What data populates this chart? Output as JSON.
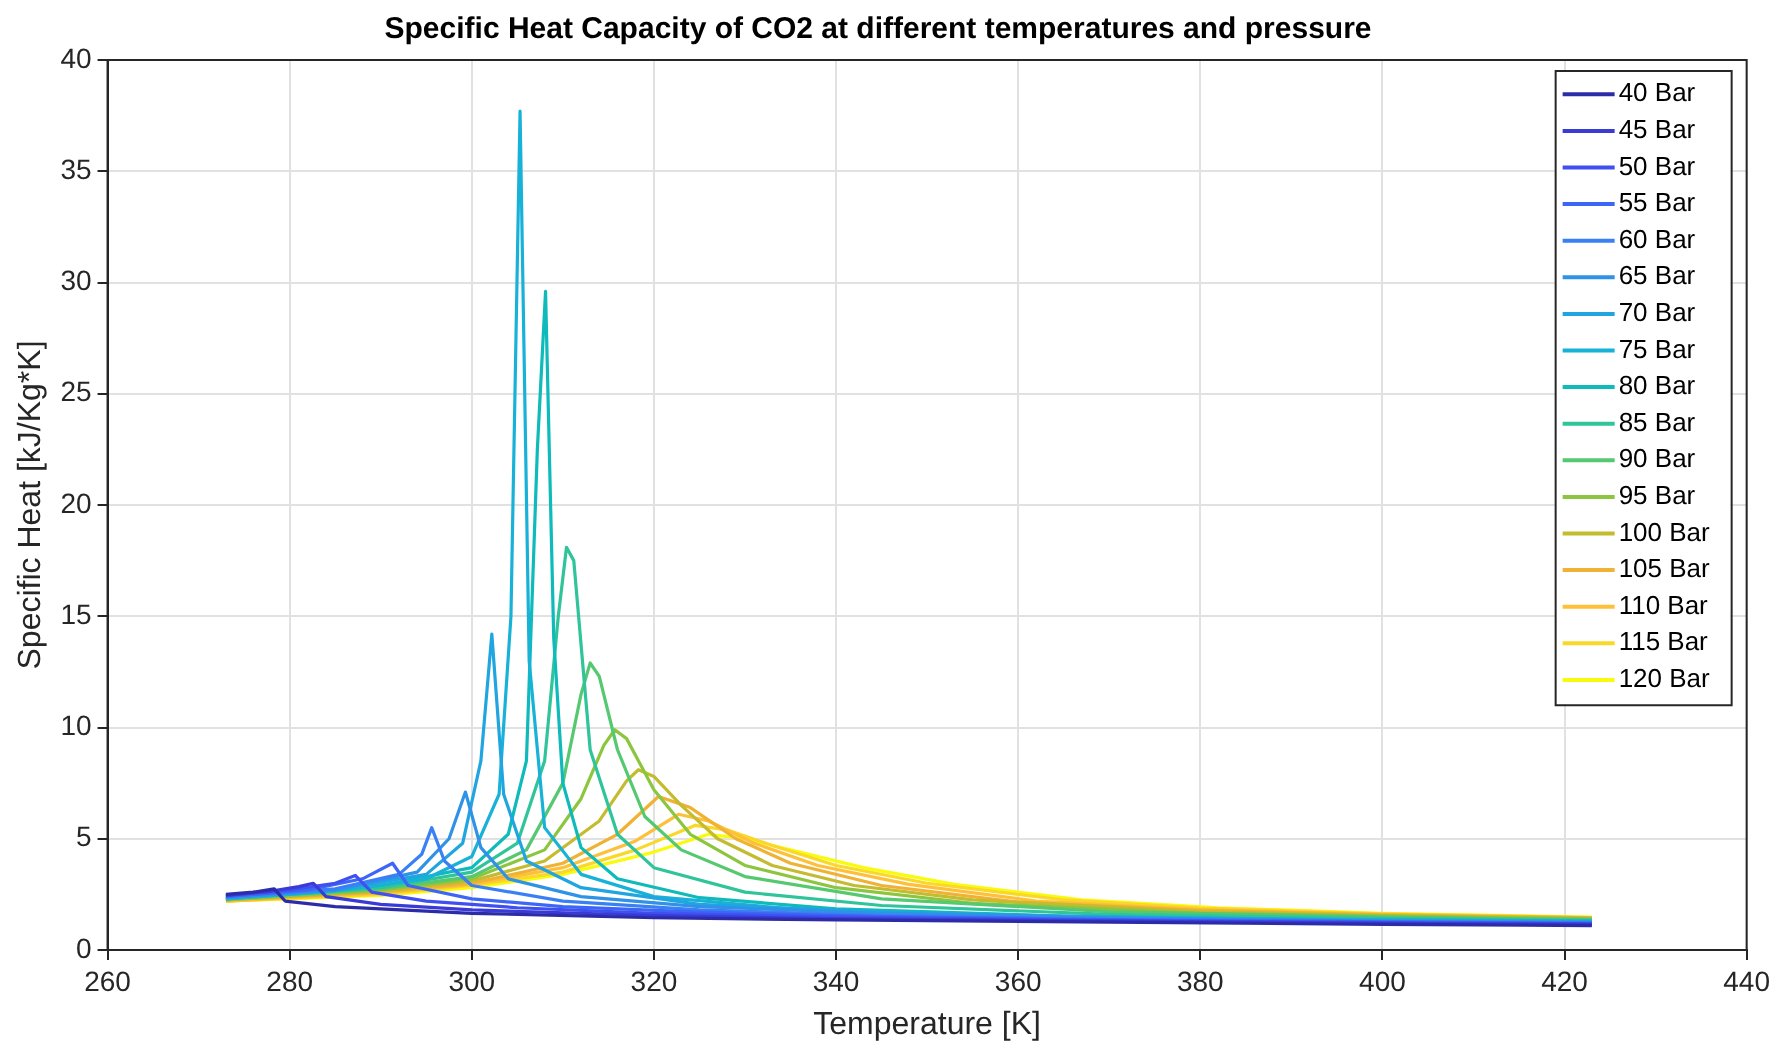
{
  "chart_data": {
    "type": "line",
    "title": "Specific Heat Capacity of CO2 at different temperatures and pressure",
    "xlabel": "Temperature [K]",
    "ylabel": "Specific Heat [kJ/Kg*K]",
    "xlim": [
      260,
      440
    ],
    "xticks": [
      260,
      280,
      300,
      320,
      340,
      360,
      380,
      400,
      420,
      440
    ],
    "ylim": [
      0,
      40
    ],
    "yticks": [
      0,
      5,
      10,
      15,
      20,
      25,
      30,
      35,
      40
    ],
    "grid": true,
    "legend": "top right",
    "series": [
      {
        "name": "40 Bar",
        "color": "#2c2ca8",
        "x": [
          273,
          276,
          278.3,
          279.5,
          285,
          300,
          320,
          340,
          370,
          400,
          423
        ],
        "values": [
          2.5,
          2.6,
          2.75,
          2.2,
          1.95,
          1.65,
          1.45,
          1.35,
          1.25,
          1.15,
          1.1
        ]
      },
      {
        "name": "45 Bar",
        "color": "#3a3ad6",
        "x": [
          273,
          278,
          281,
          282.6,
          284,
          290,
          300,
          320,
          340,
          370,
          400,
          423
        ],
        "values": [
          2.45,
          2.65,
          2.85,
          3.0,
          2.4,
          2.05,
          1.8,
          1.55,
          1.4,
          1.3,
          1.2,
          1.15
        ]
      },
      {
        "name": "50 Bar",
        "color": "#3f4ff0",
        "x": [
          273,
          280,
          285,
          287.2,
          289,
          295,
          305,
          320,
          340,
          370,
          400,
          423
        ],
        "values": [
          2.45,
          2.7,
          3.0,
          3.35,
          2.6,
          2.2,
          1.9,
          1.65,
          1.48,
          1.33,
          1.23,
          1.18
        ]
      },
      {
        "name": "55 Bar",
        "color": "#3c66f5",
        "x": [
          273,
          282,
          288,
          291.3,
          293,
          300,
          310,
          325,
          345,
          370,
          400,
          423
        ],
        "values": [
          2.4,
          2.7,
          3.2,
          3.9,
          2.9,
          2.3,
          1.95,
          1.7,
          1.5,
          1.37,
          1.26,
          1.2
        ]
      },
      {
        "name": "60 Bar",
        "color": "#3a80f5",
        "x": [
          273,
          285,
          292,
          294.5,
          295.6,
          297,
          300,
          310,
          325,
          345,
          370,
          400,
          423
        ],
        "values": [
          2.4,
          2.75,
          3.4,
          4.3,
          5.5,
          4.0,
          2.9,
          2.2,
          1.8,
          1.55,
          1.4,
          1.28,
          1.22
        ]
      },
      {
        "name": "65 Bar",
        "color": "#2f92e6",
        "x": [
          273,
          285,
          294,
          297.5,
          299.3,
          301,
          304,
          312,
          325,
          345,
          370,
          400,
          423
        ],
        "values": [
          2.35,
          2.7,
          3.5,
          5.0,
          7.1,
          4.6,
          3.2,
          2.4,
          1.95,
          1.65,
          1.45,
          1.3,
          1.25
        ]
      },
      {
        "name": "70 Bar",
        "color": "#20a5e0",
        "x": [
          273,
          285,
          295,
          299,
          301,
          302.2,
          303.5,
          306,
          312,
          325,
          345,
          370,
          400,
          423
        ],
        "values": [
          2.35,
          2.7,
          3.4,
          4.8,
          8.5,
          14.2,
          7.0,
          4.0,
          2.8,
          2.05,
          1.7,
          1.48,
          1.33,
          1.27
        ]
      },
      {
        "name": "75 Bar",
        "color": "#18b2d8",
        "x": [
          273,
          285,
          295,
          300,
          303,
          304.3,
          305.3,
          306.3,
          308,
          312,
          320,
          335,
          360,
          390,
          423
        ],
        "values": [
          2.3,
          2.65,
          3.2,
          4.2,
          7.0,
          15,
          37.7,
          13,
          5.5,
          3.4,
          2.4,
          1.85,
          1.5,
          1.35,
          1.28
        ]
      },
      {
        "name": "80 Bar",
        "color": "#0ebaba",
        "x": [
          273,
          290,
          300,
          304,
          306,
          307.2,
          308.1,
          309,
          310,
          312,
          316,
          325,
          340,
          365,
          395,
          423
        ],
        "values": [
          2.3,
          2.9,
          3.7,
          5.2,
          8.5,
          22.5,
          29.6,
          14,
          7.5,
          4.6,
          3.2,
          2.35,
          1.85,
          1.52,
          1.37,
          1.3
        ]
      },
      {
        "name": "85 Bar",
        "color": "#30c49a",
        "x": [
          273,
          290,
          300,
          305,
          308,
          309.5,
          310.4,
          311.2,
          313,
          316,
          320,
          330,
          345,
          370,
          400,
          423
        ],
        "values": [
          2.3,
          2.8,
          3.5,
          4.8,
          8.5,
          15,
          18.1,
          17.5,
          9,
          5.2,
          3.7,
          2.6,
          2.0,
          1.6,
          1.42,
          1.33
        ]
      },
      {
        "name": "90 Bar",
        "color": "#55c870",
        "x": [
          273,
          290,
          300,
          306,
          310,
          312,
          313,
          314,
          316,
          319,
          323,
          330,
          345,
          370,
          400,
          423
        ],
        "values": [
          2.3,
          2.75,
          3.3,
          4.5,
          7.5,
          11.5,
          12.9,
          12.3,
          9,
          6,
          4.5,
          3.3,
          2.3,
          1.72,
          1.48,
          1.37
        ]
      },
      {
        "name": "95 Bar",
        "color": "#8cc63e",
        "x": [
          273,
          290,
          300,
          308,
          312,
          314.5,
          315.7,
          317,
          320,
          324,
          330,
          340,
          355,
          380,
          400,
          423
        ],
        "values": [
          2.25,
          2.7,
          3.2,
          4.5,
          6.8,
          9.2,
          9.9,
          9.5,
          7.2,
          5.2,
          3.8,
          2.8,
          2.1,
          1.65,
          1.52,
          1.4
        ]
      },
      {
        "name": "100 Bar",
        "color": "#c4bb2f",
        "x": [
          273,
          290,
          300,
          308,
          314,
          317,
          318.3,
          320,
          323,
          327,
          333,
          342,
          355,
          380,
          400,
          423
        ],
        "values": [
          2.25,
          2.65,
          3.1,
          4.0,
          5.8,
          7.6,
          8.1,
          7.8,
          6.5,
          5.0,
          3.8,
          2.9,
          2.25,
          1.72,
          1.55,
          1.42
        ]
      },
      {
        "name": "105 Bar",
        "color": "#f0b234",
        "x": [
          273,
          290,
          300,
          310,
          316,
          320.5,
          324,
          329,
          335,
          345,
          360,
          380,
          400,
          423
        ],
        "values": [
          2.25,
          2.6,
          3.0,
          3.9,
          5.2,
          6.9,
          6.4,
          5.0,
          3.9,
          2.9,
          2.15,
          1.78,
          1.58,
          1.44
        ]
      },
      {
        "name": "110 Bar",
        "color": "#fec038",
        "x": [
          273,
          290,
          300,
          310,
          318,
          322.7,
          326,
          331,
          338,
          348,
          362,
          380,
          400,
          423
        ],
        "values": [
          2.2,
          2.55,
          2.95,
          3.7,
          4.9,
          6.1,
          5.8,
          4.8,
          3.8,
          2.95,
          2.2,
          1.82,
          1.6,
          1.45
        ]
      },
      {
        "name": "115 Bar",
        "color": "#f9d82a",
        "x": [
          273,
          290,
          300,
          310,
          318,
          324.5,
          328,
          333,
          340,
          350,
          365,
          380,
          400,
          423
        ],
        "values": [
          2.2,
          2.5,
          2.9,
          3.5,
          4.5,
          5.6,
          5.4,
          4.7,
          3.8,
          3.0,
          2.25,
          1.88,
          1.62,
          1.46
        ]
      },
      {
        "name": "120 Bar",
        "color": "#f9fb0e",
        "x": [
          273,
          290,
          300,
          310,
          320,
          326,
          330,
          336,
          343,
          353,
          367,
          382,
          400,
          423
        ],
        "values": [
          2.2,
          2.45,
          2.8,
          3.4,
          4.4,
          5.2,
          5.0,
          4.4,
          3.7,
          2.95,
          2.25,
          1.9,
          1.65,
          1.48
        ]
      }
    ]
  }
}
